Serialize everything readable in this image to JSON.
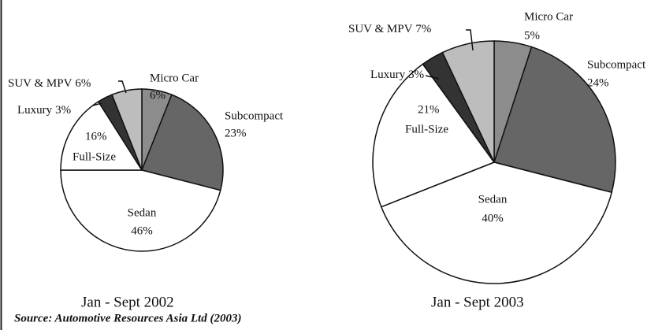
{
  "chart_data": [
    {
      "type": "pie",
      "title": "Jan - Sept 2002",
      "categories": [
        "Micro Car",
        "Subcompact",
        "Sedan",
        "Full-Size",
        "Luxury",
        "SUV & MPV"
      ],
      "values": [
        6,
        23,
        46,
        16,
        3,
        6
      ],
      "value_labels": [
        "6%",
        "23%",
        "46%",
        "16%",
        "3%",
        "6%"
      ],
      "colors": [
        "#8c8c8c",
        "#666666",
        "#ffffff",
        "#ffffff",
        "#333333",
        "#bdbdbd"
      ]
    },
    {
      "type": "pie",
      "title": "Jan - Sept 2003",
      "categories": [
        "Micro Car",
        "Subcompact",
        "Sedan",
        "Full-Size",
        "Luxury",
        "SUV & MPV"
      ],
      "values": [
        5,
        24,
        40,
        21,
        3,
        7
      ],
      "value_labels": [
        "5%",
        "24%",
        "40%",
        "21%",
        "3%",
        "7%"
      ],
      "colors": [
        "#8c8c8c",
        "#666666",
        "#ffffff",
        "#ffffff",
        "#333333",
        "#bdbdbd"
      ]
    }
  ],
  "source": "Source: Automotive Resources Asia Ltd (2003)"
}
